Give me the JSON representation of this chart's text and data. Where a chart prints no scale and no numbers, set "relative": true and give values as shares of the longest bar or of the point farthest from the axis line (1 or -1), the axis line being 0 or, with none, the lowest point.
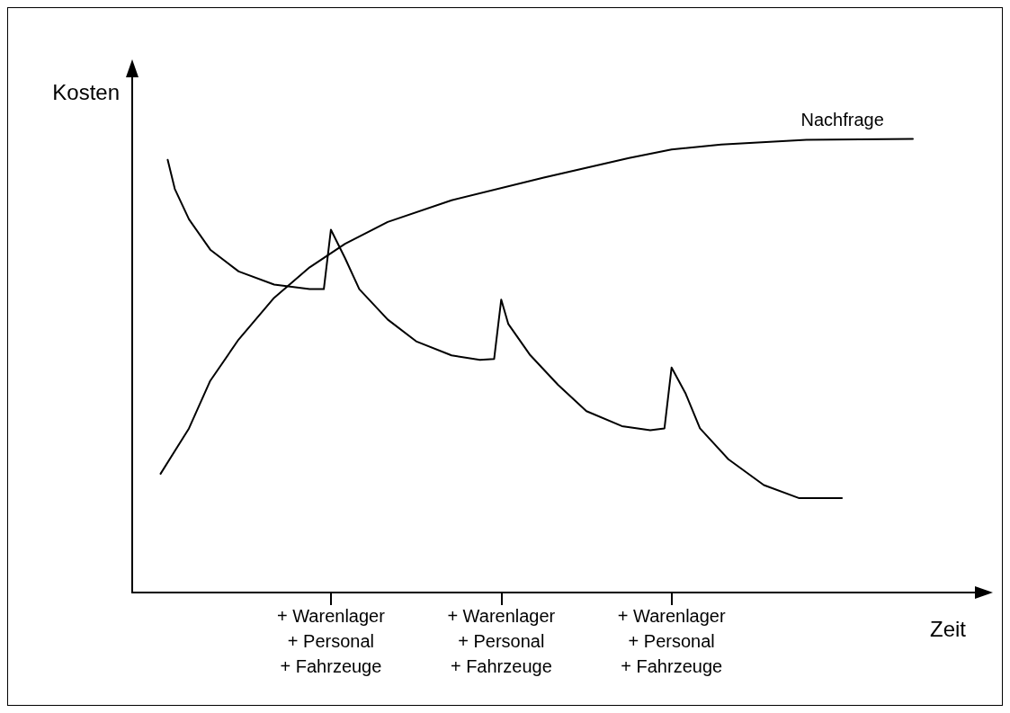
{
  "chart_data": {
    "type": "line",
    "relative": true,
    "ylabel": "Kosten",
    "xlabel": "Zeit",
    "legend": false,
    "grid": false,
    "marker": "none",
    "line_style": "solid",
    "tick_labels": "x",
    "categories": [
      null,
      null,
      null,
      null,
      null,
      null,
      null,
      null,
      null,
      null,
      null,
      null,
      null,
      null,
      null,
      null,
      null,
      null,
      null,
      null,
      null,
      null,
      null,
      null,
      null,
      null,
      null,
      null,
      "+ Warenlager\n+ Personal\n+ Fahrzeuge",
      null,
      null,
      null,
      null,
      null,
      null,
      null,
      null,
      null,
      null,
      null,
      null,
      null,
      null,
      null,
      null,
      null,
      null,
      null,
      null,
      null,
      null,
      null,
      "+ Warenlager\n+ Personal\n+ Fahrzeuge",
      null,
      null,
      null,
      null,
      null,
      null,
      null,
      null,
      null,
      null,
      null,
      null,
      null,
      null,
      null,
      null,
      null,
      null,
      null,
      null,
      null,
      null,
      null,
      "+ Warenlager\n+ Personal\n+ Fahrzeuge",
      null,
      null,
      null,
      null,
      null,
      null,
      null,
      null,
      null,
      null,
      null,
      null,
      null,
      null,
      null,
      null,
      null,
      null,
      null,
      null,
      null,
      null,
      null,
      null,
      null,
      null,
      null,
      null,
      null,
      null,
      null,
      null,
      null,
      null,
      null,
      null,
      null,
      null,
      null,
      null,
      null,
      null,
      null
    ],
    "series": [
      {
        "name": "Nachfrage",
        "color": "#000000",
        "values": [
          null,
          null,
          null,
          null,
          0.262,
          null,
          null,
          null,
          0.362,
          null,
          null,
          0.467,
          null,
          null,
          null,
          0.558,
          null,
          null,
          null,
          null,
          0.65,
          null,
          null,
          null,
          null,
          0.717,
          null,
          null,
          null,
          null,
          0.769,
          null,
          null,
          null,
          null,
          null,
          0.817,
          null,
          null,
          null,
          null,
          null,
          null,
          null,
          null,
          0.865,
          null,
          null,
          null,
          null,
          null,
          null,
          null,
          null,
          null,
          null,
          null,
          null,
          0.915,
          null,
          null,
          null,
          null,
          null,
          null,
          null,
          null,
          null,
          null,
          null,
          0.958,
          null,
          null,
          null,
          null,
          null,
          0.977,
          null,
          null,
          null,
          null,
          null,
          null,
          0.988,
          null,
          null,
          null,
          null,
          null,
          null,
          null,
          null,
          null,
          null,
          null,
          0.998,
          null,
          null,
          null,
          null,
          null,
          null,
          null,
          null,
          null,
          null,
          null,
          null,
          null,
          null,
          1.0,
          null,
          null,
          null,
          null,
          null,
          null,
          null,
          null,
          null
        ]
      },
      {
        "color": "#000000",
        "values": [
          null,
          null,
          null,
          null,
          null,
          0.954,
          0.89,
          null,
          0.823,
          null,
          null,
          0.756,
          null,
          null,
          null,
          0.708,
          null,
          null,
          null,
          null,
          0.679,
          null,
          null,
          null,
          null,
          0.669,
          null,
          0.669,
          0.8,
          null,
          0.737,
          null,
          0.669,
          null,
          null,
          null,
          0.602,
          null,
          null,
          null,
          0.554,
          null,
          null,
          null,
          null,
          0.523,
          null,
          null,
          null,
          0.513,
          null,
          0.515,
          0.646,
          0.592,
          null,
          null,
          0.525,
          null,
          null,
          null,
          0.458,
          null,
          null,
          null,
          0.4,
          null,
          null,
          null,
          null,
          0.367,
          null,
          null,
          null,
          0.358,
          null,
          0.362,
          0.496,
          null,
          0.438,
          null,
          0.362,
          null,
          null,
          null,
          0.294,
          null,
          null,
          null,
          null,
          0.237,
          null,
          null,
          null,
          null,
          0.208,
          null,
          null,
          null,
          null,
          null,
          0.208,
          null,
          null,
          null,
          null,
          null,
          null,
          null,
          null,
          null,
          null,
          null,
          null,
          null,
          null,
          null,
          null,
          null,
          null,
          null
        ]
      }
    ]
  }
}
